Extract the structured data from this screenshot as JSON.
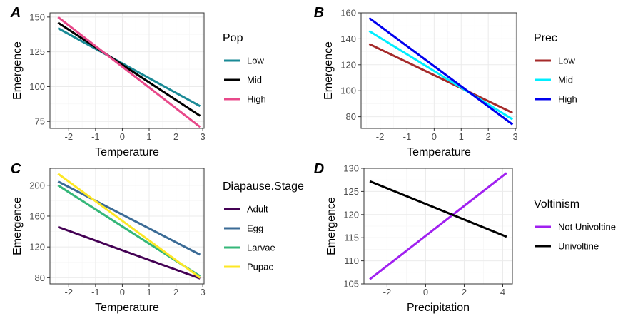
{
  "chart_data": [
    {
      "type": "line",
      "panel": "A",
      "xlabel": "Temperature",
      "ylabel": "Emergence",
      "xlim": [
        -2.7,
        3.05
      ],
      "ylim": [
        70,
        153
      ],
      "xticks": [
        -2,
        -1,
        0,
        1,
        2,
        3
      ],
      "xtick_labels": [
        "-2",
        "-1",
        "0",
        "1",
        "2",
        "3"
      ],
      "yticks": [
        75,
        100,
        125,
        150
      ],
      "ytick_labels": [
        "75",
        "100",
        "125",
        "150"
      ],
      "grid": true,
      "legend_title": "Pop",
      "legend_placement": "right",
      "series": [
        {
          "name": "Low",
          "color": "#1a8a96",
          "x": [
            -2.4,
            2.9
          ],
          "y": [
            142,
            86
          ]
        },
        {
          "name": "Mid",
          "color": "#000000",
          "x": [
            -2.4,
            2.9
          ],
          "y": [
            146,
            79
          ]
        },
        {
          "name": "High",
          "color": "#e8498a",
          "x": [
            -2.4,
            2.9
          ],
          "y": [
            150,
            71
          ]
        }
      ]
    },
    {
      "type": "line",
      "panel": "B",
      "xlabel": "Temperature",
      "ylabel": "Emergence",
      "xlim": [
        -2.7,
        3.05
      ],
      "ylim": [
        71,
        160
      ],
      "xticks": [
        -2,
        -1,
        0,
        1,
        2,
        3
      ],
      "xtick_labels": [
        "-2",
        "-1",
        "0",
        "1",
        "2",
        "3"
      ],
      "yticks": [
        80,
        100,
        120,
        140,
        160
      ],
      "ytick_labels": [
        "80",
        "100",
        "120",
        "140",
        "160"
      ],
      "grid": true,
      "legend_title": "Prec",
      "legend_placement": "right",
      "series": [
        {
          "name": "Low",
          "color": "#a52a2a",
          "x": [
            -2.4,
            2.9
          ],
          "y": [
            136,
            83
          ]
        },
        {
          "name": "Mid",
          "color": "#00eeff",
          "x": [
            -2.4,
            2.9
          ],
          "y": [
            146,
            78
          ]
        },
        {
          "name": "High",
          "color": "#0000ee",
          "x": [
            -2.4,
            2.9
          ],
          "y": [
            156,
            74
          ]
        }
      ]
    },
    {
      "type": "line",
      "panel": "C",
      "xlabel": "Temperature",
      "ylabel": "Emergence",
      "xlim": [
        -2.7,
        3.05
      ],
      "ylim": [
        72,
        222
      ],
      "xticks": [
        -2,
        -1,
        0,
        1,
        2,
        3
      ],
      "xtick_labels": [
        "-2",
        "-1",
        "0",
        "1",
        "2",
        "3"
      ],
      "yticks": [
        80,
        120,
        160,
        200
      ],
      "ytick_labels": [
        "80",
        "120",
        "160",
        "200"
      ],
      "grid": true,
      "legend_title": "Diapause.Stage",
      "legend_placement": "right",
      "series": [
        {
          "name": "Adult",
          "color": "#440154",
          "x": [
            -2.4,
            2.9
          ],
          "y": [
            146,
            79
          ]
        },
        {
          "name": "Egg",
          "color": "#3b6b96",
          "x": [
            -2.4,
            2.9
          ],
          "y": [
            205,
            110
          ]
        },
        {
          "name": "Larvae",
          "color": "#35b779",
          "x": [
            -2.4,
            2.9
          ],
          "y": [
            200,
            82
          ]
        },
        {
          "name": "Pupae",
          "color": "#fde725",
          "x": [
            -2.4,
            2.9
          ],
          "y": [
            215,
            80
          ]
        }
      ]
    },
    {
      "type": "line",
      "panel": "D",
      "xlabel": "Precipitation",
      "ylabel": "Emergence",
      "xlim": [
        -3.2,
        4.5
      ],
      "ylim": [
        105,
        130
      ],
      "xticks": [
        -2,
        0,
        2,
        4
      ],
      "xtick_labels": [
        "-2",
        "0",
        "2",
        "4"
      ],
      "yticks": [
        105,
        110,
        115,
        120,
        125,
        130
      ],
      "ytick_labels": [
        "105",
        "110",
        "115",
        "120",
        "125",
        "130"
      ],
      "grid": true,
      "legend_title": "Voltinism",
      "legend_placement": "right",
      "series": [
        {
          "name": "Not Univoltine",
          "color": "#a020f0",
          "x": [
            -2.9,
            4.2
          ],
          "y": [
            106,
            129
          ]
        },
        {
          "name": "Univoltine",
          "color": "#000000",
          "x": [
            -2.9,
            4.2
          ],
          "y": [
            127.2,
            115.2
          ]
        }
      ]
    }
  ]
}
